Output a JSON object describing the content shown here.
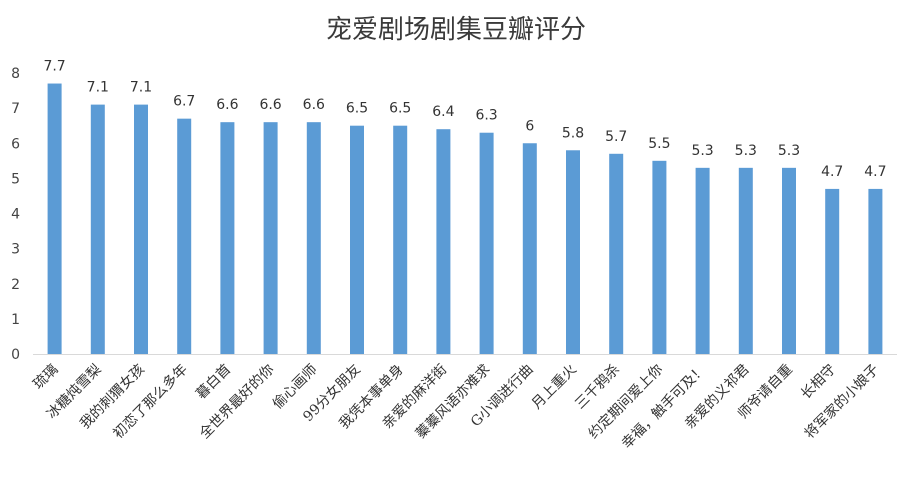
{
  "chart_data": {
    "type": "bar",
    "title": "宠爱剧场剧集豆瓣评分",
    "xlabel": "",
    "ylabel": "",
    "ylim": [
      0,
      8
    ],
    "yticks": [
      0,
      1,
      2,
      3,
      4,
      5,
      6,
      7,
      8
    ],
    "grid": false,
    "legend": "none",
    "bar_color": "#5b9bd5",
    "categories": [
      "琉璃",
      "冰糖炖雪梨",
      "我的刺猬女孩",
      "初恋了那么多年",
      "暮白首",
      "全世界最好的你",
      "偷心画师",
      "99分女朋友",
      "我凭本事单身",
      "亲爱的麻洋街",
      "蓁蓁风语亦难求",
      "G小调进行曲",
      "月上重火",
      "三千鸦杀",
      "约定期间爱上你",
      "幸福，触手可及！",
      "亲爱的义祁君",
      "师爷请自重",
      "长相守",
      "将军家的小娘子"
    ],
    "values": [
      7.7,
      7.1,
      7.1,
      6.7,
      6.6,
      6.6,
      6.6,
      6.5,
      6.5,
      6.4,
      6.3,
      6,
      5.8,
      5.7,
      5.5,
      5.3,
      5.3,
      5.3,
      4.7,
      4.7
    ]
  }
}
